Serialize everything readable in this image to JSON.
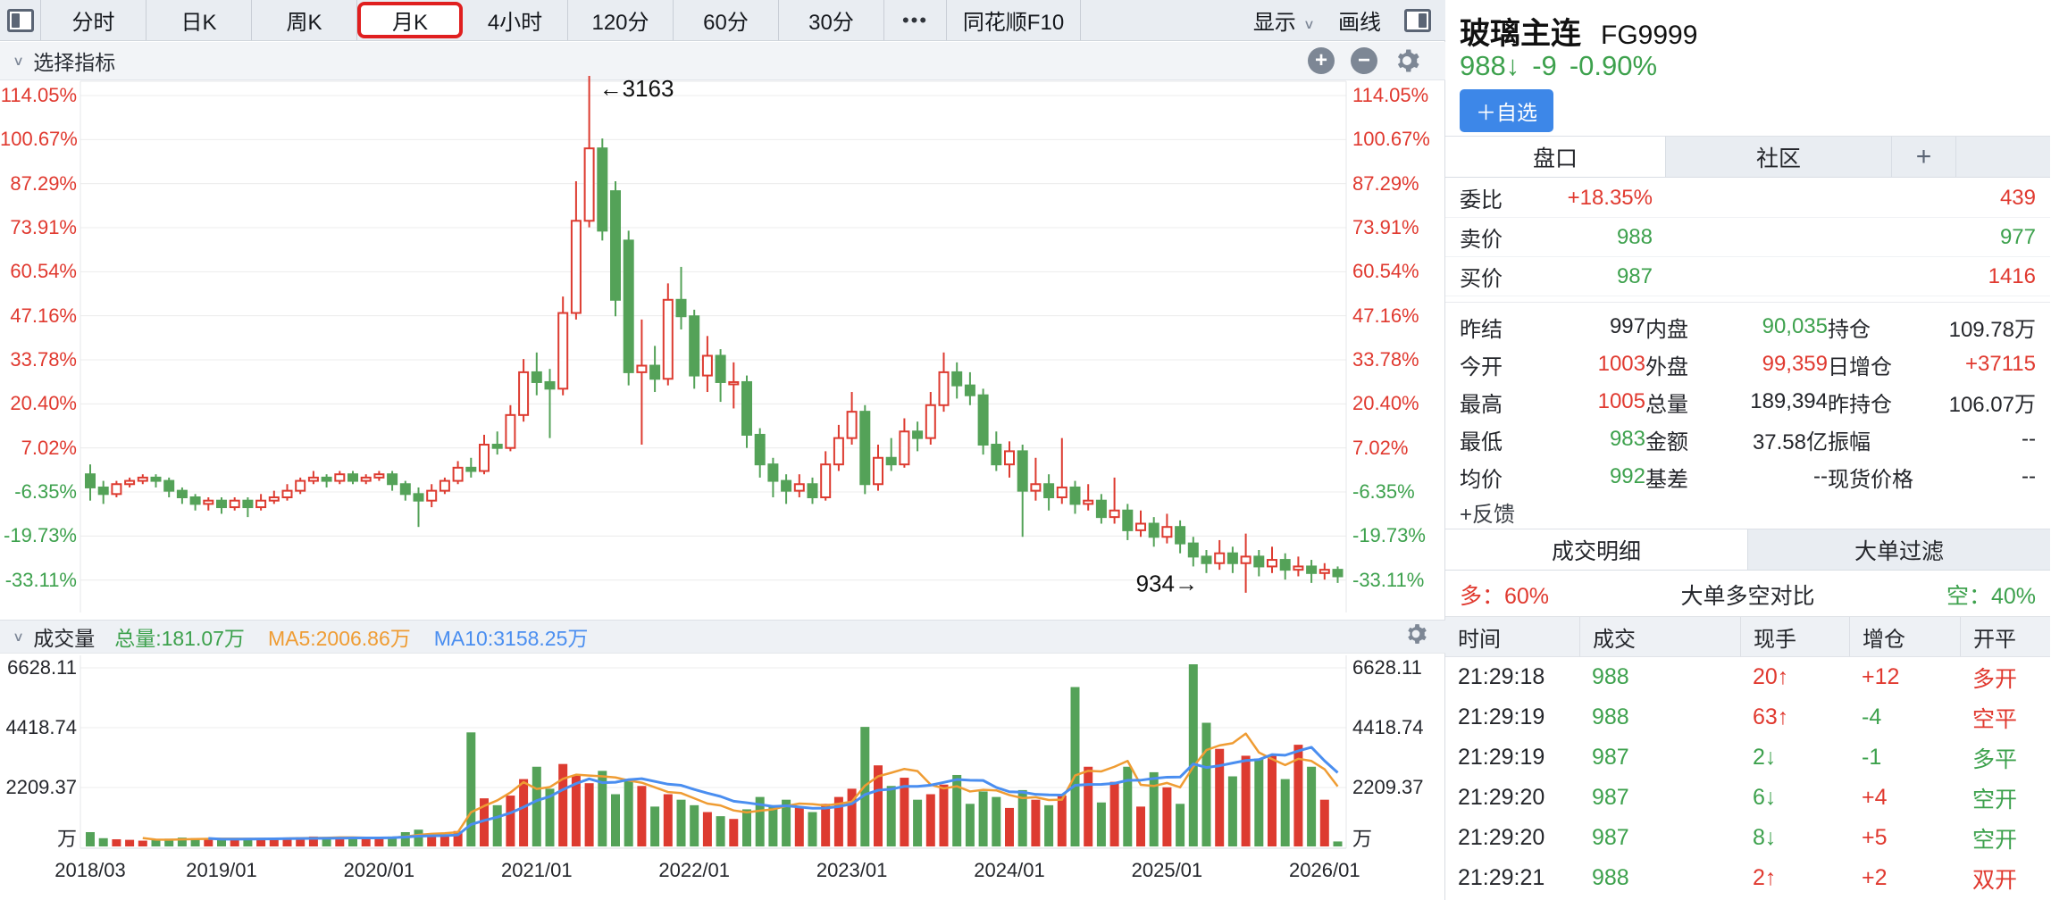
{
  "accent_colors": {
    "red": "#e0392f",
    "green": "#3da14d",
    "candle_red": "#dd3b30",
    "candle_green": "#54a258",
    "ma5_orange": "#ef9c33",
    "ma10_blue": "#4a8ef0",
    "button_blue": "#3d87e8"
  },
  "toolbar": {
    "tabs": [
      "分时",
      "日K",
      "周K",
      "月K",
      "4小时",
      "120分",
      "60分",
      "30分",
      "•••",
      "同花顺F10"
    ],
    "active_tab": "月K",
    "display_label": "显示",
    "draw_label": "画线"
  },
  "indicator_bar": {
    "select_label": "选择指标"
  },
  "main_axis": {
    "labels": [
      "114.05%",
      "100.67%",
      "87.29%",
      "73.91%",
      "60.54%",
      "47.16%",
      "33.78%",
      "20.40%",
      "7.02%",
      "-6.35%",
      "-19.73%",
      "-33.11%"
    ],
    "annotation_high": "←3163",
    "annotation_low": "934→"
  },
  "volume_pane": {
    "title": "成交量",
    "total_label": "总量:181.07万",
    "ma5_label": "MA5:2006.86万",
    "ma10_label": "MA10:3158.25万",
    "axis_labels": [
      "6628.11",
      "4418.74",
      "2209.37"
    ],
    "unit": "万"
  },
  "x_axis": {
    "labels": [
      "2018/03",
      "2019/01",
      "2020/01",
      "2021/01",
      "2022/01",
      "2023/01",
      "2024/01",
      "2025/01",
      "2026/01"
    ],
    "month_index": [
      0,
      10,
      22,
      34,
      46,
      58,
      70,
      82,
      94
    ]
  },
  "chart_data": {
    "type": "candlestick_with_volume",
    "symbol": "FG9999",
    "period": "monthly",
    "start_month": "2018/03",
    "y_axis_percent_range": [
      -33.11,
      114.05
    ],
    "high_label_value": 3163,
    "low_label_value": 934,
    "candles_ochl_pct": [
      [
        -1,
        -5,
        2,
        -9
      ],
      [
        -5,
        -7,
        -3,
        -10
      ],
      [
        -7,
        -4,
        -3,
        -8
      ],
      [
        -4,
        -3,
        -2,
        -5
      ],
      [
        -3,
        -2,
        -1,
        -4
      ],
      [
        -2,
        -3,
        -1,
        -5
      ],
      [
        -3,
        -6,
        -2,
        -8
      ],
      [
        -6,
        -8,
        -5,
        -10
      ],
      [
        -8,
        -10,
        -7,
        -12
      ],
      [
        -10,
        -9,
        -8,
        -12
      ],
      [
        -9,
        -11,
        -8,
        -13
      ],
      [
        -11,
        -9,
        -8,
        -12
      ],
      [
        -9,
        -11,
        -8,
        -14
      ],
      [
        -11,
        -9,
        -7,
        -12
      ],
      [
        -9,
        -8,
        -6,
        -10
      ],
      [
        -8,
        -6,
        -4,
        -9
      ],
      [
        -6,
        -3,
        -2,
        -7
      ],
      [
        -3,
        -2,
        0,
        -4
      ],
      [
        -2,
        -3,
        -1,
        -5
      ],
      [
        -3,
        -1,
        0,
        -4
      ],
      [
        -1,
        -3,
        0,
        -4
      ],
      [
        -3,
        -2,
        -1,
        -4
      ],
      [
        -2,
        -1,
        0,
        -3
      ],
      [
        -1,
        -4,
        0,
        -6
      ],
      [
        -4,
        -7,
        -3,
        -9
      ],
      [
        -7,
        -9,
        -5,
        -17
      ],
      [
        -9,
        -6,
        -4,
        -11
      ],
      [
        -6,
        -3,
        -2,
        -7
      ],
      [
        -3,
        1,
        3,
        -4
      ],
      [
        1,
        0,
        4,
        -2
      ],
      [
        0,
        8,
        11,
        -1
      ],
      [
        8,
        7,
        12,
        5
      ],
      [
        7,
        17,
        20,
        6
      ],
      [
        17,
        30,
        34,
        15
      ],
      [
        30,
        27,
        36,
        23
      ],
      [
        27,
        25,
        31,
        10
      ],
      [
        25,
        48,
        53,
        23
      ],
      [
        48,
        76,
        88,
        46
      ],
      [
        76,
        98,
        120,
        74
      ],
      [
        98,
        73,
        101,
        70
      ],
      [
        85,
        52,
        88,
        47
      ],
      [
        70,
        30,
        73,
        26
      ],
      [
        30,
        32,
        46,
        8
      ],
      [
        32,
        28,
        38,
        24
      ],
      [
        28,
        52,
        57,
        26
      ],
      [
        52,
        47,
        62,
        43
      ],
      [
        47,
        29,
        49,
        25
      ],
      [
        29,
        35,
        41,
        24
      ],
      [
        35,
        27,
        37,
        21
      ],
      [
        27,
        27,
        33,
        19
      ],
      [
        27,
        11,
        29,
        7
      ],
      [
        11,
        2,
        13,
        -2
      ],
      [
        2,
        -3,
        4,
        -8
      ],
      [
        -3,
        -6,
        -1,
        -10
      ],
      [
        -6,
        -4,
        -1,
        -8
      ],
      [
        -4,
        -8,
        -2,
        -10
      ],
      [
        -8,
        2,
        6,
        -9
      ],
      [
        2,
        10,
        14,
        0
      ],
      [
        10,
        18,
        24,
        8
      ],
      [
        18,
        -4,
        20,
        -7
      ],
      [
        -4,
        4,
        8,
        -6
      ],
      [
        4,
        2,
        10,
        0
      ],
      [
        2,
        12,
        16,
        1
      ],
      [
        12,
        10,
        15,
        6
      ],
      [
        10,
        20,
        24,
        8
      ],
      [
        20,
        30,
        36,
        18
      ],
      [
        30,
        26,
        33,
        22
      ],
      [
        26,
        23,
        30,
        20
      ],
      [
        23,
        8,
        25,
        5
      ],
      [
        8,
        2,
        12,
        0
      ],
      [
        2,
        6,
        9,
        -2
      ],
      [
        6,
        -6,
        8,
        -20
      ],
      [
        -6,
        -4,
        4,
        -9
      ],
      [
        -4,
        -8,
        -1,
        -12
      ],
      [
        -8,
        -5,
        10,
        -10
      ],
      [
        -5,
        -10,
        -3,
        -13
      ],
      [
        -10,
        -9,
        -4,
        -12
      ],
      [
        -9,
        -14,
        -7,
        -16
      ],
      [
        -14,
        -12,
        -2,
        -16
      ],
      [
        -12,
        -18,
        -10,
        -21
      ],
      [
        -18,
        -16,
        -12,
        -20
      ],
      [
        -16,
        -20,
        -14,
        -23
      ],
      [
        -20,
        -17,
        -13,
        -22
      ],
      [
        -17,
        -22,
        -15,
        -25
      ],
      [
        -22,
        -26,
        -20,
        -29
      ],
      [
        -26,
        -28,
        -24,
        -31
      ],
      [
        -28,
        -25,
        -21,
        -30
      ],
      [
        -25,
        -28,
        -23,
        -31
      ],
      [
        -28,
        -26,
        -19,
        -37
      ],
      [
        -26,
        -29,
        -24,
        -32
      ],
      [
        -29,
        -27,
        -23,
        -31
      ],
      [
        -27,
        -30,
        -25,
        -33
      ],
      [
        -30,
        -29,
        -26,
        -32
      ],
      [
        -29,
        -31,
        -27,
        -34
      ],
      [
        -31,
        -30,
        -28,
        -33
      ],
      [
        -30,
        -32,
        -29,
        -34
      ]
    ],
    "volumes_wan": [
      520,
      300,
      260,
      240,
      210,
      230,
      280,
      320,
      300,
      260,
      240,
      280,
      310,
      290,
      260,
      300,
      340,
      360,
      310,
      330,
      300,
      280,
      320,
      360,
      520,
      610,
      480,
      420,
      560,
      4150,
      1750,
      1500,
      1850,
      2450,
      2900,
      2100,
      3000,
      2600,
      2300,
      2750,
      1900,
      2450,
      2200,
      1450,
      1900,
      1700,
      1500,
      1250,
      1100,
      1000,
      1350,
      1800,
      1500,
      1700,
      1450,
      1250,
      1550,
      1800,
      2100,
      4350,
      2950,
      2200,
      2500,
      1700,
      1900,
      2250,
      2600,
      1550,
      2000,
      1800,
      1400,
      2050,
      1700,
      1500,
      1850,
      5800,
      2900,
      1600,
      2350,
      2900,
      1450,
      2700,
      2150,
      1550,
      6628,
      4500,
      3550,
      2550,
      3300,
      3200,
      3300,
      2450,
      3700,
      2900,
      1700,
      181
    ],
    "volume_axis_max": 6628.11
  },
  "header": {
    "title": "玻璃主连",
    "code": "FG9999",
    "price": "988↓",
    "change": "-9",
    "pct": "-0.90%",
    "watch_button": "＋自选"
  },
  "panel": {
    "top_tabs": [
      "盘口",
      "社区",
      "+"
    ],
    "active_top_tab": "盘口",
    "quote_rows": [
      {
        "label": "委比",
        "v1": "+18.35%",
        "v1c": "red",
        "v2": "439",
        "v2c": "red"
      },
      {
        "label": "卖价",
        "v1": "988",
        "v1c": "green",
        "v2": "977",
        "v2c": "green"
      },
      {
        "label": "买价",
        "v1": "987",
        "v1c": "green",
        "v2": "1416",
        "v2c": "red"
      }
    ],
    "stats_grid": [
      [
        {
          "l": "昨结",
          "v": "997",
          "c": "black"
        },
        {
          "l": "内盘",
          "v": "90,035",
          "c": "green"
        },
        {
          "l": "持仓",
          "v": "109.78万",
          "c": "black"
        }
      ],
      [
        {
          "l": "今开",
          "v": "1003",
          "c": "red"
        },
        {
          "l": "外盘",
          "v": "99,359",
          "c": "red"
        },
        {
          "l": "日增仓",
          "v": "+37115",
          "c": "red"
        }
      ],
      [
        {
          "l": "最高",
          "v": "1005",
          "c": "red"
        },
        {
          "l": "总量",
          "v": "189,394",
          "c": "black"
        },
        {
          "l": "昨持仓",
          "v": "106.07万",
          "c": "black"
        }
      ],
      [
        {
          "l": "最低",
          "v": "983",
          "c": "green"
        },
        {
          "l": "金额",
          "v": "37.58亿",
          "c": "black"
        },
        {
          "l": "振幅",
          "v": "--",
          "c": "black"
        }
      ],
      [
        {
          "l": "均价",
          "v": "992",
          "c": "green"
        },
        {
          "l": "基差",
          "v": "--",
          "c": "black"
        },
        {
          "l": "现货价格",
          "v": "--",
          "c": "black"
        }
      ]
    ],
    "feedback_label": "+反馈",
    "detail_tabs": [
      "成交明细",
      "大单过滤"
    ],
    "active_detail_tab": "成交明细",
    "bull_bear": {
      "bull_label": "多：60%",
      "title": "大单多空对比",
      "bear_label": "空：40%",
      "bull_pct": 60,
      "bear_pct": 40
    },
    "table": {
      "headers": [
        "时间",
        "成交",
        "现手",
        "增仓",
        "开平"
      ],
      "rows": [
        {
          "time": "21:29:18",
          "price": "988",
          "pc": "green",
          "vol": "20↑",
          "vc": "red",
          "oi": "+12",
          "oc": "red",
          "kp": "多开",
          "kc": "red"
        },
        {
          "time": "21:29:19",
          "price": "988",
          "pc": "green",
          "vol": "63↑",
          "vc": "red",
          "oi": "-4",
          "oc": "green",
          "kp": "空平",
          "kc": "red"
        },
        {
          "time": "21:29:19",
          "price": "987",
          "pc": "green",
          "vol": "2↓",
          "vc": "green",
          "oi": "-1",
          "oc": "green",
          "kp": "多平",
          "kc": "green"
        },
        {
          "time": "21:29:20",
          "price": "987",
          "pc": "green",
          "vol": "6↓",
          "vc": "green",
          "oi": "+4",
          "oc": "red",
          "kp": "空开",
          "kc": "green"
        },
        {
          "time": "21:29:20",
          "price": "987",
          "pc": "green",
          "vol": "8↓",
          "vc": "green",
          "oi": "+5",
          "oc": "red",
          "kp": "空开",
          "kc": "green"
        },
        {
          "time": "21:29:21",
          "price": "988",
          "pc": "green",
          "vol": "2↑",
          "vc": "red",
          "oi": "+2",
          "oc": "red",
          "kp": "双开",
          "kc": "red"
        }
      ]
    }
  }
}
